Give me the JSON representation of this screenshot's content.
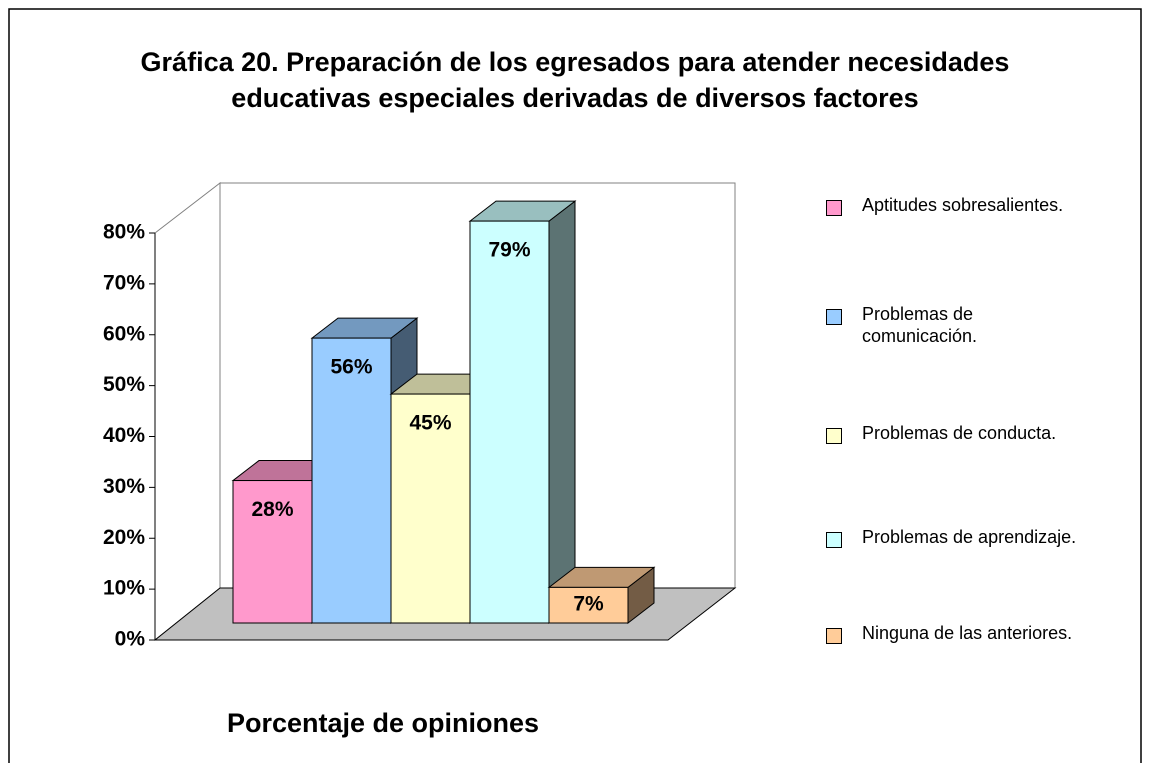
{
  "chart_data": {
    "type": "bar3d",
    "title": [
      "Gráfica 20. Preparación de los egresados para atender necesidades",
      "educativas especiales derivadas de diversos factores"
    ],
    "xlabel": "Porcentaje de opiniones",
    "ylim": [
      0,
      80
    ],
    "yticks": [
      {
        "value": 0,
        "label": "0%"
      },
      {
        "value": 10,
        "label": "10%"
      },
      {
        "value": 20,
        "label": "20%"
      },
      {
        "value": 30,
        "label": "30%"
      },
      {
        "value": 40,
        "label": "40%"
      },
      {
        "value": 50,
        "label": "50%"
      },
      {
        "value": 60,
        "label": "60%"
      },
      {
        "value": 70,
        "label": "70%"
      },
      {
        "value": 80,
        "label": "80%"
      }
    ],
    "series": [
      {
        "name": "Aptitudes sobresalientes.",
        "color": "#ff99cc",
        "values": [
          28
        ],
        "value_labels": [
          "28%"
        ]
      },
      {
        "name": "Problemas de comunicación.",
        "color": "#99ccff",
        "values": [
          56
        ],
        "value_labels": [
          "56%"
        ]
      },
      {
        "name": "Problemas de conducta.",
        "color": "#ffffcc",
        "values": [
          45
        ],
        "value_labels": [
          "45%"
        ]
      },
      {
        "name": "Problemas de aprendizaje.",
        "color": "#ccffff",
        "values": [
          79
        ],
        "value_labels": [
          "79%"
        ]
      },
      {
        "name": "Ninguna de las anteriores.",
        "color": "#ffcc99",
        "values": [
          7
        ],
        "value_labels": [
          "7%"
        ]
      }
    ],
    "legend": "right"
  }
}
